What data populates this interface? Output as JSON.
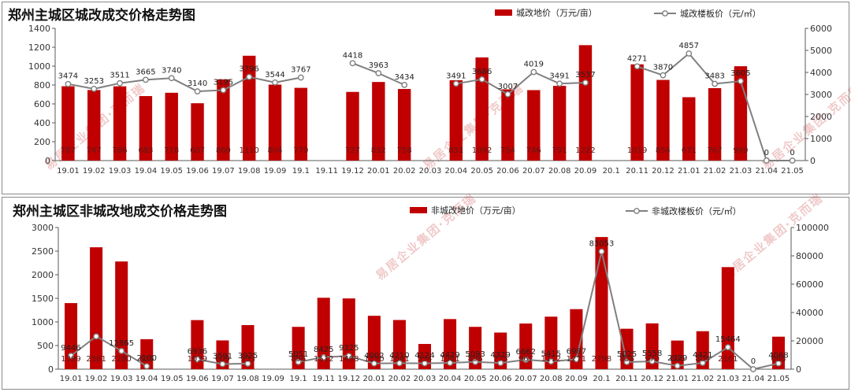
{
  "watermark": "易居企业集团·克而瑞",
  "colors": {
    "bar": "#c00000",
    "line": "#7f7f7f",
    "axis": "#595959",
    "grid": "#d9d9d9"
  },
  "chart_data": [
    {
      "type": "bar",
      "title": "郑州主城区城改成交价格走势图",
      "categories": [
        "19.01",
        "19.02",
        "19.03",
        "19.04",
        "19.05",
        "19.06",
        "19.07",
        "19.08",
        "19.09",
        "19.1",
        "19.11",
        "19.12",
        "20.01",
        "20.02",
        "20.03",
        "20.04",
        "20.05",
        "20.06",
        "20.07",
        "20.08",
        "20.09",
        "20.1",
        "20.11",
        "20.12",
        "21.01",
        "21.02",
        "21.03",
        "21.04",
        "21.05"
      ],
      "series": [
        {
          "name": "城改地价（万元/亩）",
          "kind": "bar",
          "axis": "left",
          "values": [
            787,
            747,
            786,
            683,
            718,
            607,
            860,
            1110,
            804,
            770,
            null,
            727,
            832,
            758,
            null,
            851,
            1092,
            754,
            746,
            791,
            1222,
            null,
            1019,
            854,
            671,
            767,
            999,
            null,
            null
          ],
          "labels": [
            "787",
            "747",
            "786",
            "683",
            "718",
            "607",
            "860",
            "1110",
            "804",
            "770",
            "",
            "727",
            "832",
            "758",
            "",
            "851",
            "1092",
            "754",
            "746",
            "791",
            "1222",
            "",
            "1019",
            "854",
            "671",
            "767",
            "999",
            "",
            ""
          ]
        },
        {
          "name": "城改楼板价（元/㎡）",
          "kind": "line",
          "axis": "right",
          "values": [
            3474,
            3253,
            3511,
            3665,
            3740,
            3140,
            3195,
            3796,
            3544,
            3767,
            null,
            4418,
            3963,
            3434,
            null,
            3491,
            3686,
            3007,
            4019,
            3491,
            3537,
            null,
            4271,
            3870,
            4857,
            3483,
            3605,
            0,
            0
          ],
          "labels": [
            "3474",
            "3253",
            "3511",
            "3665",
            "3740",
            "3140",
            "3195",
            "3796",
            "3544",
            "3767",
            "",
            "4418",
            "3963",
            "3434",
            "",
            "3491",
            "3686",
            "3007",
            "4019",
            "3491",
            "3537",
            "",
            "4271",
            "3870",
            "4857",
            "3483",
            "3605",
            "0",
            "0"
          ]
        }
      ],
      "ylim_left": [
        0,
        1400
      ],
      "yticks_left": [
        0,
        200,
        400,
        600,
        800,
        1000,
        1200,
        1400
      ],
      "ylim_right": [
        0,
        6000
      ],
      "yticks_right": [
        0,
        1000,
        2000,
        3000,
        4000,
        5000,
        6000
      ],
      "legend": "top-right",
      "grid": false
    },
    {
      "type": "bar",
      "title": "郑州主城区非城改地成交价格走势图",
      "categories": [
        "19.01",
        "19.02",
        "19.03",
        "19.04",
        "19.05",
        "19.06",
        "19.07",
        "19.08",
        "19.09",
        "19.1",
        "19.11",
        "19.12",
        "20.01",
        "20.02",
        "20.03",
        "20.04",
        "20.05",
        "20.06",
        "20.07",
        "20.08",
        "20.09",
        "20.1",
        "20.11",
        "20.12",
        "21.01",
        "21.02",
        "21.03",
        "21.04",
        "21.05"
      ],
      "series": [
        {
          "name": "非城改地价（万元/亩）",
          "kind": "bar",
          "axis": "left",
          "values": [
            1399,
            2581,
            2280,
            635,
            null,
            1039,
            609,
            933,
            null,
            896,
            1512,
            1498,
            1130,
            1041,
            534,
            1061,
            896,
            775,
            967,
            1112,
            1271,
            2798,
            856,
            970,
            606,
            804,
            2161,
            null,
            688
          ],
          "labels": [
            "1399",
            "2581",
            "2280",
            "635",
            "",
            "1039",
            "609",
            "933",
            "",
            "896",
            "1512",
            "1498",
            "1130",
            "1041",
            "534",
            "1061",
            "896",
            "775",
            "967",
            "1112",
            "1271",
            "2798",
            "856",
            "970",
            "606",
            "804",
            "2161",
            "",
            "688"
          ]
        },
        {
          "name": "非城改楼板价（元/㎡）",
          "kind": "line",
          "axis": "right",
          "values": [
            9446,
            23150,
            12865,
            2100,
            null,
            6936,
            3591,
            3925,
            null,
            5051,
            8425,
            9325,
            4002,
            4210,
            4124,
            4429,
            5093,
            4379,
            6662,
            5415,
            6987,
            83053,
            5025,
            5558,
            2329,
            4421,
            15464,
            0,
            4068
          ],
          "labels": [
            "9446",
            "",
            "12865",
            "2100",
            "",
            "6936",
            "3591",
            "3925",
            "",
            "5051",
            "8425",
            "9325",
            "4002",
            "4210",
            "4124",
            "4429",
            "5093",
            "4379",
            "6662",
            "5415",
            "6987",
            "83053",
            "5025",
            "5558",
            "2329",
            "4421",
            "15464",
            "0",
            "4068"
          ]
        }
      ],
      "ylim_left": [
        0,
        3000
      ],
      "yticks_left": [
        0,
        500,
        1000,
        1500,
        2000,
        2500,
        3000
      ],
      "ylim_right": [
        0,
        100000
      ],
      "yticks_right": [
        0,
        20000,
        40000,
        60000,
        80000,
        100000
      ],
      "legend": "top-right",
      "grid": false
    }
  ]
}
